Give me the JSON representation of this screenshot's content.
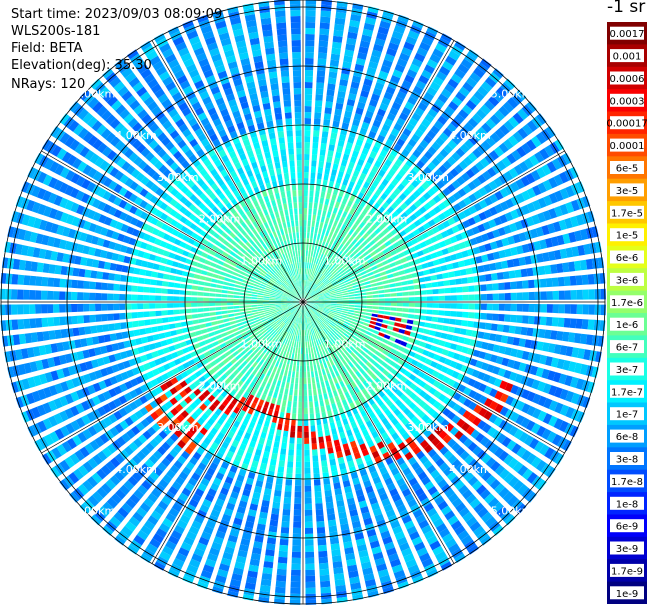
{
  "header": {
    "start_time": "Start time: 2023/09/03 08:09:09",
    "instrument": "WLS200s-181",
    "field": "Field: BETA",
    "elevation": "Elevation(deg): 35.30",
    "nrays": "NRays: 120"
  },
  "colorbar": {
    "unit": "-1 sr",
    "labels": [
      "0.0017",
      "0.001",
      "0.0006",
      "0.0003",
      "0.00017",
      "0.0001",
      "6e-5",
      "3e-5",
      "1.7e-5",
      "1e-5",
      "6e-6",
      "3e-6",
      "1.7e-6",
      "1e-6",
      "6e-7",
      "3e-7",
      "1.7e-7",
      "1e-7",
      "6e-8",
      "3e-8",
      "1.7e-8",
      "1e-8",
      "6e-9",
      "3e-9",
      "1.7e-9",
      "1e-9"
    ]
  },
  "ppi": {
    "range_rings_km": [
      1,
      2,
      3,
      4,
      5
    ],
    "ring_labels": [
      "1.00km",
      "2.00km",
      "3.00km",
      "4.00km",
      "5.00km"
    ],
    "max_range_km": 5.8,
    "n_rays": 120,
    "n_spokes": 12
  }
}
